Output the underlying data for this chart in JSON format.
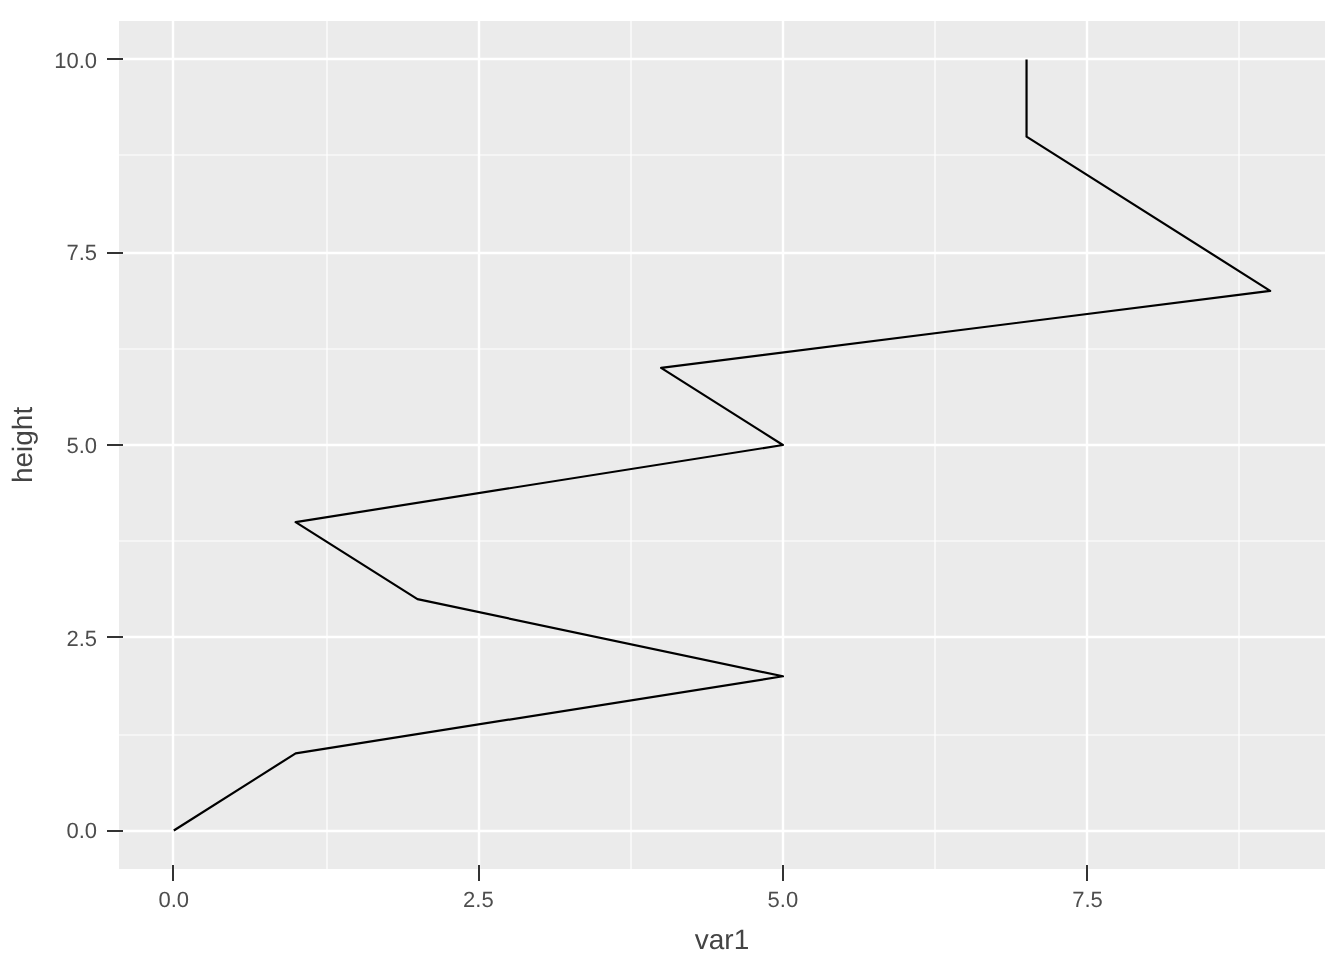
{
  "chart_data": {
    "type": "line",
    "xlabel": "var1",
    "ylabel": "height",
    "x": [
      0,
      1,
      5,
      2,
      1,
      5,
      4,
      9,
      7,
      7
    ],
    "series": [
      {
        "color": "#000000",
        "values": [
          0,
          1,
          2,
          3,
          4,
          5,
          6,
          7,
          9,
          10
        ]
      }
    ],
    "xlim": [
      -0.45,
      9.45
    ],
    "ylim": [
      -0.5,
      10.5
    ],
    "xticks": [
      {
        "value": 0,
        "label": "0.0"
      },
      {
        "value": 2.5,
        "label": "2.5"
      },
      {
        "value": 5,
        "label": "5.0"
      },
      {
        "value": 7.5,
        "label": "7.5"
      }
    ],
    "yticks": [
      {
        "value": 0,
        "label": "0.0"
      },
      {
        "value": 2.5,
        "label": "2.5"
      },
      {
        "value": 5,
        "label": "5.0"
      },
      {
        "value": 7.5,
        "label": "7.5"
      },
      {
        "value": 10,
        "label": "10.0"
      }
    ],
    "grid": true,
    "line_style": "solid"
  }
}
